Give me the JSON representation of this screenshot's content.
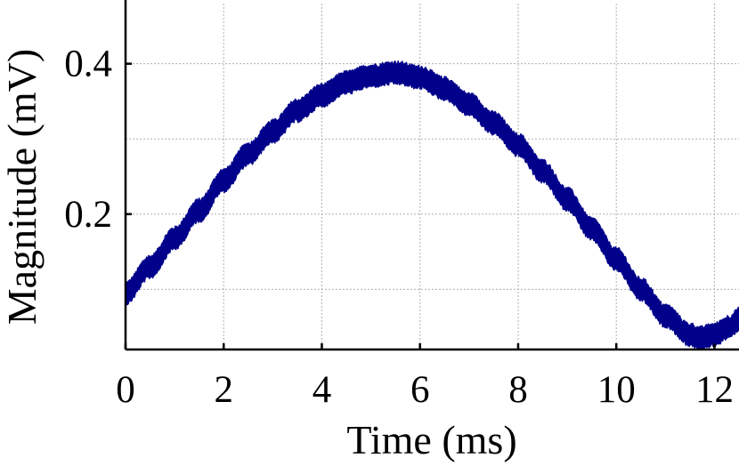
{
  "chart_data": {
    "type": "line",
    "title": "",
    "xlabel": "Time (ms)",
    "ylabel": "Magnitude (mV)",
    "xlim": [
      0,
      12.5
    ],
    "ylim": [
      0.02,
      0.48
    ],
    "x_ticks": [
      0,
      2,
      4,
      6,
      8,
      10,
      12
    ],
    "x_tick_labels": [
      "0",
      "2",
      "4",
      "6",
      "8",
      "10",
      "12"
    ],
    "y_ticks": [
      0.2,
      0.4
    ],
    "y_tick_labels": [
      "0.2",
      "0.4"
    ],
    "y_minor_gridlines": [
      0.1,
      0.3
    ],
    "grid": true,
    "legend": "none",
    "line_color": "#00008B",
    "noise_band_width": 0.025,
    "series": [
      {
        "x": [
          0.0,
          0.5,
          1.0,
          1.5,
          2.0,
          2.5,
          3.0,
          3.5,
          4.0,
          4.5,
          5.0,
          5.5,
          6.0,
          6.5,
          7.0,
          7.5,
          8.0,
          8.5,
          9.0,
          9.5,
          10.0,
          10.5,
          11.0,
          11.5,
          11.7,
          12.0,
          12.3,
          12.5
        ],
        "y": [
          0.095,
          0.13,
          0.168,
          0.205,
          0.245,
          0.28,
          0.31,
          0.338,
          0.358,
          0.375,
          0.384,
          0.388,
          0.382,
          0.367,
          0.346,
          0.321,
          0.292,
          0.257,
          0.22,
          0.18,
          0.14,
          0.1,
          0.065,
          0.04,
          0.035,
          0.04,
          0.05,
          0.06
        ]
      }
    ]
  }
}
